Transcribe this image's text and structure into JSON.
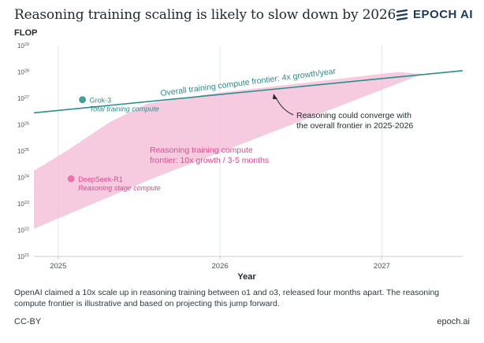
{
  "header": {
    "title": "Reasoning training scaling is likely to slow down by 2026",
    "brand": "EPOCH AI"
  },
  "chart_data": {
    "type": "line",
    "title": "Reasoning training scaling is likely to slow down by 2026",
    "ylabel": "FLOP",
    "xlabel": "Year",
    "y_scale": "log",
    "y_ticks": [
      {
        "exp": 21,
        "label": "10",
        "sup": "21"
      },
      {
        "exp": 22,
        "label": "10",
        "sup": "22"
      },
      {
        "exp": 23,
        "label": "10",
        "sup": "23"
      },
      {
        "exp": 24,
        "label": "10",
        "sup": "24"
      },
      {
        "exp": 25,
        "label": "10",
        "sup": "25"
      },
      {
        "exp": 26,
        "label": "10",
        "sup": "26"
      },
      {
        "exp": 27,
        "label": "10",
        "sup": "27"
      },
      {
        "exp": 28,
        "label": "10",
        "sup": "28"
      },
      {
        "exp": 29,
        "label": "10",
        "sup": "29"
      }
    ],
    "x_ticks": [
      {
        "value": 2025.0,
        "label": "2025"
      },
      {
        "value": 2026.0,
        "label": "2026"
      },
      {
        "value": 2027.0,
        "label": "2027"
      }
    ],
    "xlim": [
      2024.85,
      2027.5
    ],
    "ylim_exp": [
      21,
      29
    ],
    "grid": "vertical",
    "series": [
      {
        "name": "Overall training compute frontier: 4x growth/year",
        "color": "#2a8f8c",
        "points": [
          [
            2024.85,
            26.45
          ],
          [
            2027.5,
            28.05
          ]
        ]
      }
    ],
    "band": {
      "name": "Reasoning training compute frontier: 10x growth / 3-5 months",
      "color": "#f3b9d6",
      "upper": [
        [
          2024.85,
          24.25
        ],
        [
          2025.05,
          25.0
        ],
        [
          2025.32,
          26.1
        ],
        [
          2025.55,
          26.8
        ],
        [
          2026.0,
          27.22
        ],
        [
          2027.1,
          28.0
        ]
      ],
      "lower": [
        [
          2024.85,
          22.05
        ],
        [
          2025.6,
          24.0
        ],
        [
          2027.25,
          27.92
        ]
      ]
    },
    "points": [
      {
        "name": "Grok-3",
        "sublabel": "Total training compute",
        "x": 2025.15,
        "y_exp": 26.95,
        "color": "#2a8f8c",
        "label_color": "#2a8f8c"
      },
      {
        "name": "DeepSeek-R1",
        "sublabel": "Reasoning stage compute",
        "x": 2025.08,
        "y_exp": 23.95,
        "color": "#e36aa5",
        "label_color": "#e0498f"
      }
    ],
    "annotations": {
      "frontier_label": "Overall training compute frontier: 4x growth/year",
      "reasoning_label_line1": "Reasoning training compute",
      "reasoning_label_line2": "frontier: 10x growth / 3-5 months",
      "converge_line1": "Reasoning could converge with",
      "converge_line2": "the overall frontier in 2025-2026"
    }
  },
  "footer": {
    "note": "OpenAI claimed a 10x scale up in reasoning training between o1 and o3, released four months apart. The reasoning compute frontier is illustrative and based on projecting this jump forward.",
    "license": "CC-BY",
    "site": "epoch.ai"
  }
}
